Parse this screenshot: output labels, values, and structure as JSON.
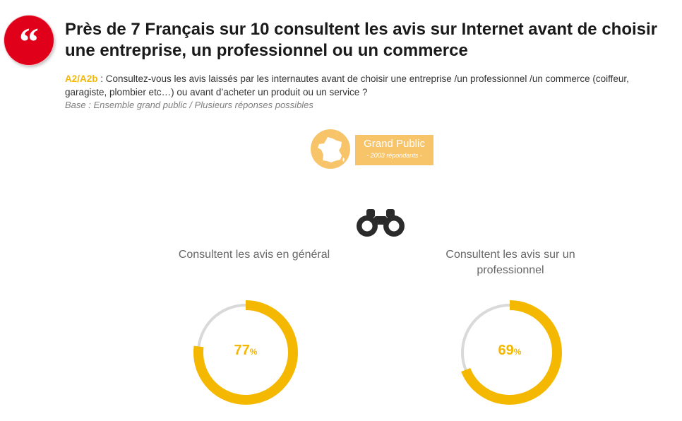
{
  "header": {
    "title": "Près de 7 Français sur 10 consultent les avis sur Internet avant de choisir une entreprise, un professionnel ou un commerce",
    "question_code": "A2/A2b",
    "question_text": " : Consultez-vous les avis laissés par les internautes avant de choisir une entreprise /un professionnel /un commerce (coiffeur, garagiste, plombier etc…) ou avant d’acheter un produit ou un service ?",
    "base": "Base : Ensemble grand public / Plusieurs réponses possibles"
  },
  "panel": {
    "name": "Grand Public",
    "respondents": "- 2003 répondants -"
  },
  "icons": {
    "quote": "quote-icon",
    "france": "france-map-icon",
    "binoculars": "binoculars-icon"
  },
  "colors": {
    "accent": "#f5b800",
    "track": "#d9d9d9",
    "badge_red": "#e1001a",
    "panel_orange": "#f7c46a"
  },
  "chart_data": [
    {
      "type": "pie",
      "variant": "donut",
      "label": "Consultent les avis en général",
      "value": 77,
      "value_text": "77",
      "unit": "%",
      "max": 100
    },
    {
      "type": "pie",
      "variant": "donut",
      "label": "Consultent les avis sur un professionnel",
      "value": 69,
      "value_text": "69",
      "unit": "%",
      "max": 100
    }
  ]
}
